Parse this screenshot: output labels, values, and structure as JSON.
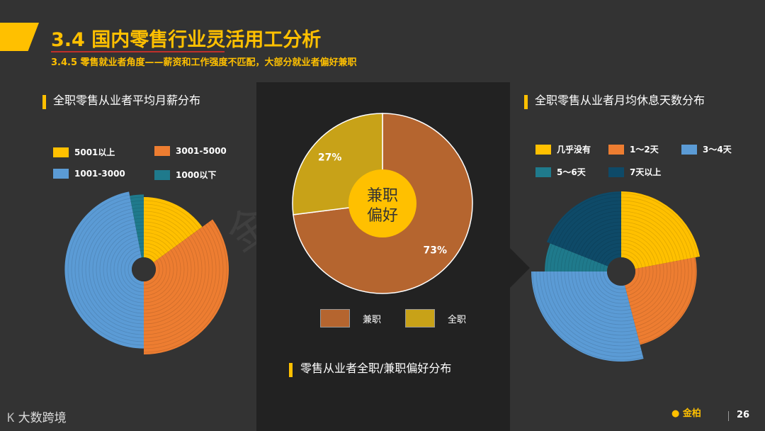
{
  "header": {
    "title": "3.4 国内零售行业灵活用工分析",
    "subtitle": "3.4.5 零售就业者角度——薪资和工作强度不匹配，大部分就业者偏好兼职"
  },
  "watermark": "金柏刚研究院",
  "footer": {
    "logo_text": "大数跨境",
    "brand_text": "金柏",
    "page_number": "26"
  },
  "colors": {
    "accent": "#FFC000",
    "background": "#333333",
    "panel": "#222222"
  },
  "chart_data": [
    {
      "type": "pie",
      "variant": "nightingale-rose",
      "title": "全职零售从业者平均月薪分布",
      "legend_position": "top",
      "categories": [
        "5001以上",
        "3001-5000",
        "1001-3000",
        "1000以下"
      ],
      "angles_pct": [
        15,
        35,
        47,
        3
      ],
      "radii_rel": [
        0.85,
        1.0,
        0.93,
        0.88
      ],
      "colors": [
        "#FFC000",
        "#ED7D31",
        "#5B9BD5",
        "#1F7A8C"
      ]
    },
    {
      "type": "pie",
      "title": "零售从业者全职/兼职偏好分布",
      "center_label": [
        "兼职",
        "偏好"
      ],
      "legend_position": "bottom",
      "categories": [
        "兼职",
        "全职"
      ],
      "values": [
        73,
        27
      ],
      "labels": [
        "73%",
        "27%"
      ],
      "colors": [
        "#B5652F",
        "#C8A218"
      ]
    },
    {
      "type": "pie",
      "variant": "nightingale-rose",
      "title": "全职零售从业者月均休息天数分布",
      "legend_position": "top",
      "categories": [
        "几乎没有",
        "1～2天",
        "3～4天",
        "5～6天",
        "7天以上"
      ],
      "angles_pct": [
        22,
        24,
        29,
        6,
        19
      ],
      "radii_rel": [
        0.89,
        0.84,
        1.0,
        0.85,
        0.89
      ],
      "colors": [
        "#FFC000",
        "#ED7D31",
        "#5B9BD5",
        "#1F7A8C",
        "#0E4A68"
      ]
    }
  ]
}
